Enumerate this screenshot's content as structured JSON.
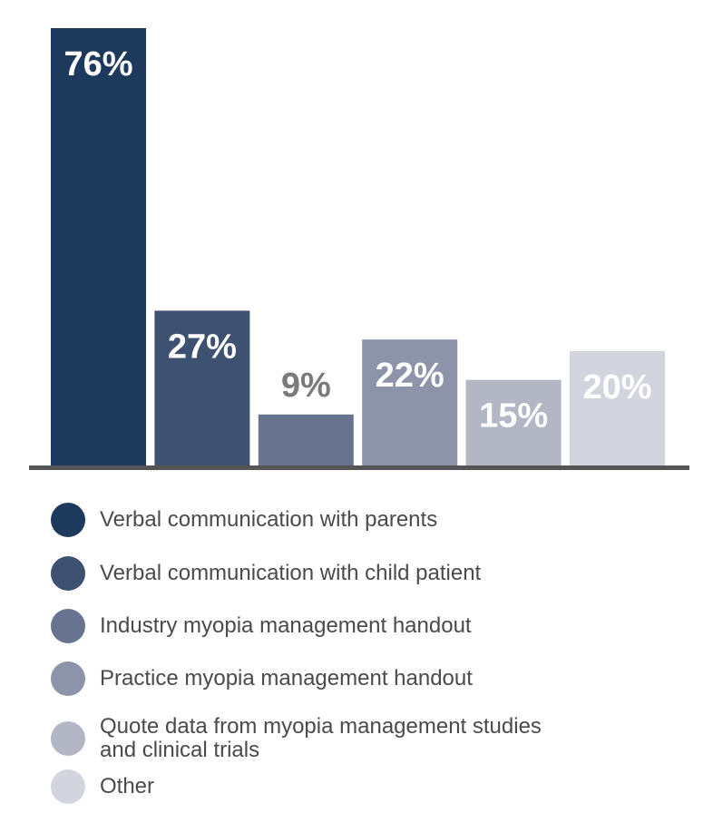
{
  "chart_data": {
    "type": "bar",
    "categories": [
      "Verbal communication with parents",
      "Verbal communication with child patient",
      "Industry myopia management handout",
      "Practice myopia management handout",
      "Quote data from myopia management studies and clinical trials",
      "Other"
    ],
    "values": [
      76,
      27,
      9,
      22,
      15,
      20
    ],
    "data_labels": [
      "76%",
      "27%",
      "9%",
      "22%",
      "15%",
      "20%"
    ],
    "colors": [
      "#1d3a5c",
      "#3e5170",
      "#68738f",
      "#8d93a8",
      "#b2b6c5",
      "#d2d5de"
    ],
    "label_colors": [
      "#ffffff",
      "#ffffff",
      "#7a7a7a",
      "#ffffff",
      "#ffffff",
      "#ffffff"
    ],
    "ylim": [
      0,
      76
    ],
    "unit": "%",
    "legend_position": "bottom"
  },
  "legend": {
    "items": [
      {
        "label": "Verbal communication with parents",
        "color": "#1d3a5c"
      },
      {
        "label": "Verbal communication with child patient",
        "color": "#3e5170"
      },
      {
        "label": "Industry myopia management handout",
        "color": "#68738f"
      },
      {
        "label": "Practice myopia management handout",
        "color": "#8d93a8"
      },
      {
        "label": "Quote data from myopia management studies and clinical trials",
        "color": "#b2b6c5"
      },
      {
        "label": "Other",
        "color": "#d2d5de"
      }
    ]
  }
}
